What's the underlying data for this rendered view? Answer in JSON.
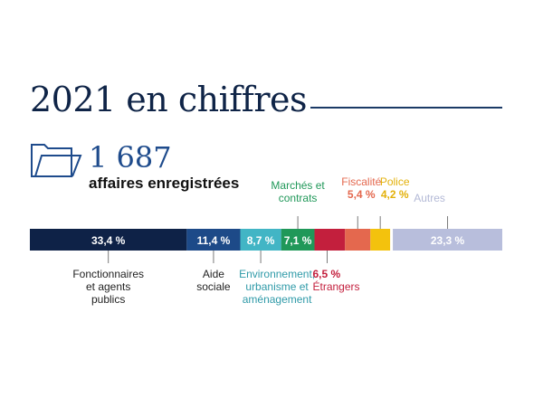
{
  "header": {
    "title": "2021 en chiffres",
    "count_value": "1 687",
    "count_label": "affaires enregistrées",
    "folder_icon": "folder-icon"
  },
  "colors": {
    "title": "#0f2447",
    "accent": "#1e4b8c",
    "rule": "#1b3a66"
  },
  "chart_data": {
    "type": "bar",
    "orientation": "horizontal-stacked",
    "unit": "%",
    "categories": [
      "Fonctionnaires et agents publics",
      "Aide sociale",
      "Environnement, urbanisme et aménagement",
      "Marchés et contrats",
      "Étrangers",
      "Fiscalité",
      "Police",
      "Autres"
    ],
    "values": [
      33.4,
      11.4,
      8.7,
      7.1,
      6.5,
      5.4,
      4.2,
      23.3
    ],
    "value_labels": [
      "33,4 %",
      "11,4 %",
      "8,7 %",
      "7,1 %",
      "6,5 %",
      "5,4 %",
      "4,2 %",
      "23,3 %"
    ],
    "segment_colors": [
      "#0e2247",
      "#1d4a88",
      "#42b5c5",
      "#209859",
      "#c31f3d",
      "#e4684e",
      "#f3c20d",
      "#b8bedc"
    ],
    "category_lines": [
      [
        "Fonctionnaires",
        "et agents",
        "publics"
      ],
      [
        "Aide",
        "sociale"
      ],
      [
        "Environnement,",
        "urbanisme et",
        "aménagement"
      ],
      [
        "Marchés et",
        "contrats"
      ],
      [
        "Étrangers"
      ],
      [
        "Fiscalité"
      ],
      [
        "Police"
      ],
      [
        "Autres"
      ]
    ],
    "label_colors": [
      "#222222",
      "#222222",
      "#2f9aa8",
      "#209859",
      "#c31f3d",
      "#e4684e",
      "#e3b10a",
      "#b3b9d6"
    ],
    "legend": "none",
    "grid": false
  }
}
